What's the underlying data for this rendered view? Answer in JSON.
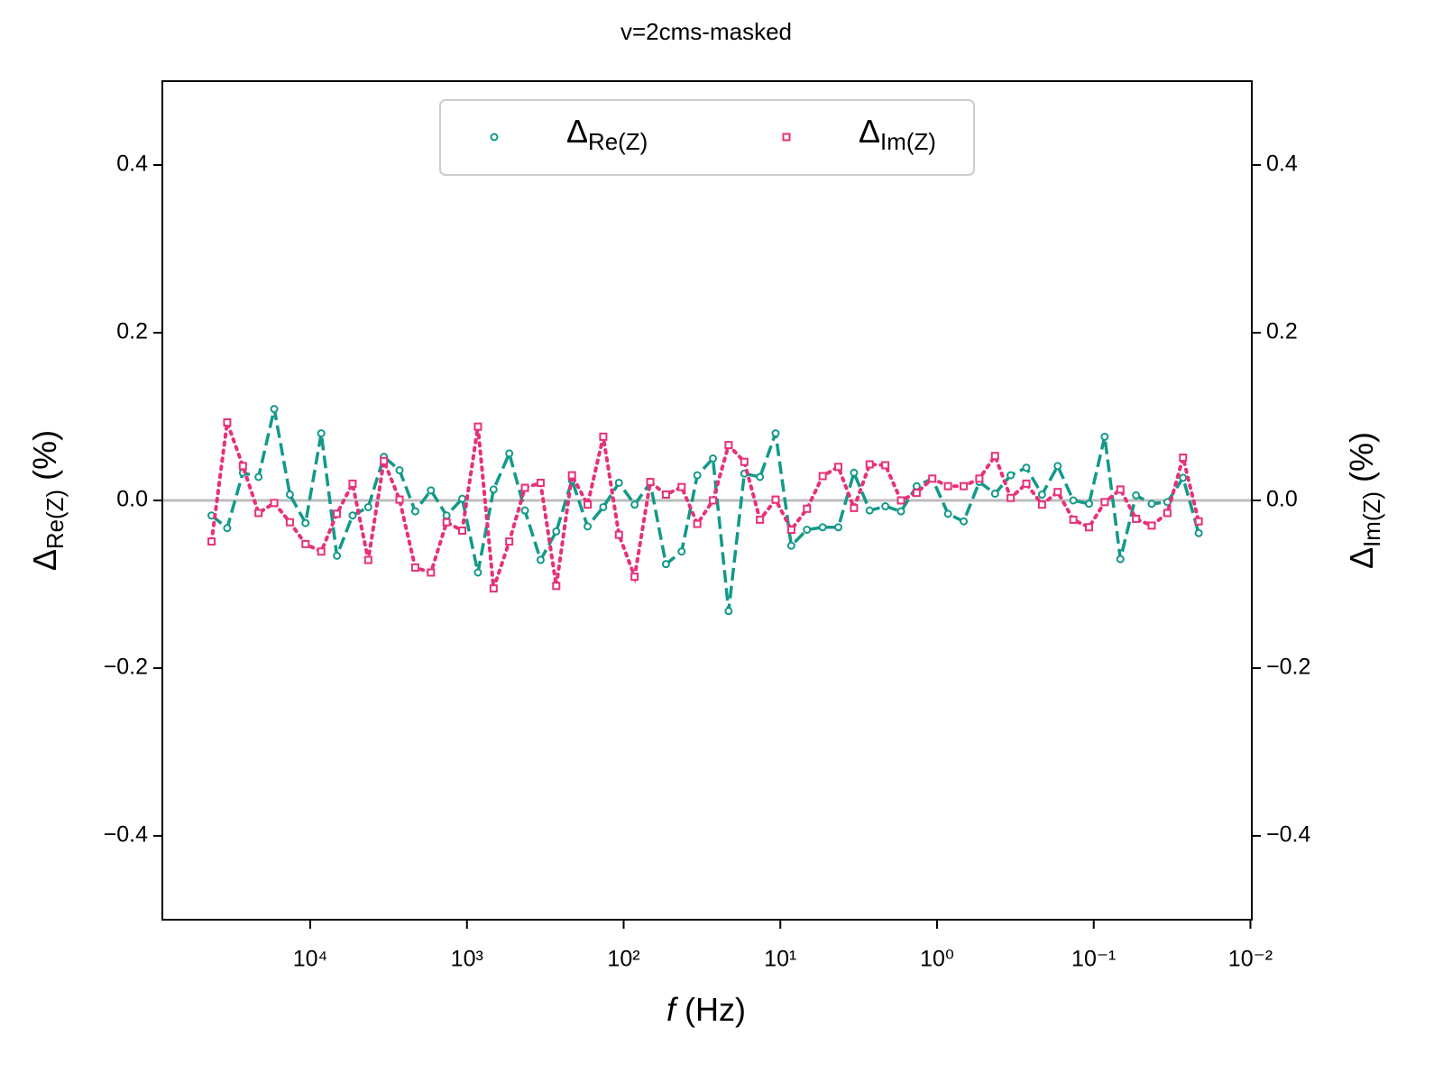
{
  "chart_data": {
    "type": "line",
    "title": "v=2cms-masked",
    "x_label": "f (Hz)",
    "y_label": "ΔRe(Z) (%)",
    "y2_label": "ΔIm(Z) (%)",
    "log_x": true,
    "x": [
      42660,
      33880,
      26920,
      21380,
      16980,
      13490,
      10720,
      8511,
      6761,
      5370,
      4266,
      3388,
      2692,
      2138,
      1698,
      1349,
      1072,
      851.1,
      676.1,
      537.0,
      426.6,
      338.8,
      269.2,
      213.8,
      169.8,
      134.9,
      107.2,
      85.11,
      67.61,
      53.7,
      42.66,
      33.88,
      26.92,
      21.38,
      16.98,
      13.49,
      10.72,
      8.511,
      6.761,
      5.37,
      4.266,
      3.388,
      2.692,
      2.138,
      1.698,
      1.349,
      1.072,
      0.8511,
      0.6761,
      0.537,
      0.4266,
      0.3388,
      0.2692,
      0.2138,
      0.1698,
      0.1349,
      0.1072,
      0.08511,
      0.06761,
      0.0537,
      0.04266,
      0.03388,
      0.02692,
      0.02138
    ],
    "series": [
      {
        "name": "ΔRe(Z)",
        "color": "#12998a",
        "marker": "circle",
        "dash": "dashed",
        "values": [
          -0.018,
          -0.033,
          0.033,
          0.028,
          0.109,
          0.007,
          -0.027,
          0.08,
          -0.066,
          -0.018,
          -0.008,
          0.052,
          0.036,
          -0.013,
          0.012,
          -0.018,
          0.002,
          -0.086,
          0.013,
          0.056,
          -0.012,
          -0.071,
          -0.037,
          0.024,
          -0.031,
          -0.008,
          0.021,
          -0.005,
          0.021,
          -0.076,
          -0.061,
          0.03,
          0.05,
          -0.132,
          0.032,
          0.028,
          0.08,
          -0.054,
          -0.035,
          -0.032,
          -0.032,
          0.033,
          -0.012,
          -0.007,
          -0.013,
          0.017,
          0.026,
          -0.016,
          -0.025,
          0.022,
          0.008,
          0.03,
          0.039,
          0.007,
          0.041,
          0.0,
          -0.004,
          0.076,
          -0.07,
          0.006,
          -0.004,
          -0.002,
          0.027,
          -0.039
        ]
      },
      {
        "name": "ΔIm(Z)",
        "color": "#e8307a",
        "marker": "square",
        "dash": "dotted",
        "axis": "y2",
        "values": [
          -0.049,
          0.093,
          0.041,
          -0.015,
          -0.003,
          -0.026,
          -0.052,
          -0.061,
          -0.016,
          0.02,
          -0.071,
          0.047,
          0.001,
          -0.08,
          -0.086,
          -0.026,
          -0.036,
          0.088,
          -0.105,
          -0.049,
          0.015,
          0.021,
          -0.102,
          0.03,
          -0.005,
          0.076,
          -0.041,
          -0.091,
          0.022,
          0.007,
          0.016,
          -0.028,
          0.0,
          0.066,
          0.046,
          -0.023,
          0.001,
          -0.035,
          -0.01,
          0.029,
          0.04,
          -0.009,
          0.043,
          0.042,
          0.0,
          0.009,
          0.026,
          0.017,
          0.017,
          0.026,
          0.053,
          0.003,
          0.02,
          -0.005,
          0.01,
          -0.023,
          -0.032,
          -0.002,
          0.013,
          -0.022,
          -0.03,
          -0.015,
          0.051,
          -0.025
        ]
      }
    ],
    "xlim": [
      87900,
      0.0098
    ],
    "xticks": [
      {
        "value": 10000,
        "label": "10⁴"
      },
      {
        "value": 1000,
        "label": "10³"
      },
      {
        "value": 100,
        "label": "10²"
      },
      {
        "value": 10,
        "label": "10¹"
      },
      {
        "value": 1,
        "label": "10⁰"
      },
      {
        "value": 0.1,
        "label": "10⁻¹"
      },
      {
        "value": 0.01,
        "label": "10⁻²"
      }
    ],
    "ylim": [
      -0.5,
      0.5
    ],
    "yticks": [
      {
        "value": -0.4,
        "label": "−0.4"
      },
      {
        "value": -0.2,
        "label": "−0.2"
      },
      {
        "value": 0,
        "label": "0.0"
      },
      0.2,
      0.4
    ],
    "y2lim": [
      -0.5,
      0.5
    ],
    "y2ticks": [
      {
        "value": -0.4,
        "label": "−0.4"
      },
      {
        "value": -0.2,
        "label": "−0.2"
      },
      {
        "value": 0,
        "label": "0.0"
      },
      0.2,
      0.4
    ],
    "hline": 0,
    "hline_color": "#bdbdbd",
    "legend": "upper center"
  }
}
